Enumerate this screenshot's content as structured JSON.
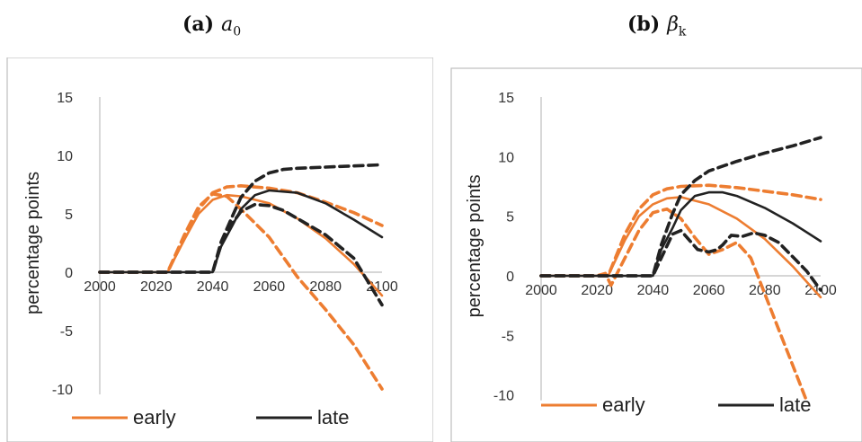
{
  "panels": [
    {
      "label": "(a)",
      "symbol": "a",
      "subscript": "0",
      "chart_data": {
        "type": "line",
        "title": "",
        "xlabel": "",
        "ylabel": "percentage points",
        "xlim": [
          2000,
          2100
        ],
        "ylim": [
          -10,
          15
        ],
        "x_ticks": [
          2000,
          2020,
          2040,
          2060,
          2080,
          2100
        ],
        "y_ticks": [
          -10,
          -5,
          0,
          5,
          10,
          15
        ],
        "legend_position": "bottom",
        "legend": [
          "early",
          "late"
        ],
        "colors": {
          "early": "#ED7D31",
          "late": "#222222"
        },
        "series": [
          {
            "legend_group": "early",
            "style": "solid",
            "x": [
              2000,
              2020,
              2024,
              2030,
              2035,
              2040,
              2045,
              2050,
              2060,
              2070,
              2080,
              2090,
              2100
            ],
            "y": [
              0,
              0,
              0,
              2.8,
              5.0,
              6.2,
              6.6,
              6.5,
              5.9,
              4.6,
              2.9,
              0.7,
              -2.0
            ]
          },
          {
            "legend_group": "early",
            "style": "dashed",
            "x": [
              2000,
              2020,
              2024,
              2030,
              2035,
              2040,
              2045,
              2050,
              2060,
              2070,
              2080,
              2090,
              2100
            ],
            "y": [
              0,
              0,
              0,
              3.0,
              5.4,
              6.8,
              7.3,
              7.4,
              7.2,
              6.8,
              6.0,
              5.1,
              4.0
            ]
          },
          {
            "legend_group": "early",
            "style": "dashed",
            "x": [
              2000,
              2020,
              2024,
              2030,
              2035,
              2040,
              2045,
              2050,
              2060,
              2070,
              2080,
              2090,
              2100
            ],
            "y": [
              0,
              0,
              0,
              3.2,
              5.6,
              6.7,
              6.5,
              5.4,
              3.0,
              -0.4,
              -3.2,
              -6.2,
              -10.0
            ]
          },
          {
            "legend_group": "late",
            "style": "solid",
            "x": [
              2000,
              2040,
              2043,
              2047,
              2050,
              2055,
              2060,
              2070,
              2080,
              2090,
              2100
            ],
            "y": [
              0,
              0,
              2.2,
              4.0,
              5.4,
              6.6,
              7.0,
              6.8,
              5.9,
              4.5,
              3.0
            ]
          },
          {
            "legend_group": "late",
            "style": "dashed",
            "x": [
              2000,
              2040,
              2043,
              2047,
              2050,
              2055,
              2060,
              2065,
              2070,
              2080,
              2090,
              2100
            ],
            "y": [
              0,
              0,
              2.6,
              4.8,
              6.4,
              7.8,
              8.5,
              8.8,
              8.9,
              9.0,
              9.1,
              9.2
            ]
          },
          {
            "legend_group": "late",
            "style": "dashed",
            "x": [
              2000,
              2040,
              2043,
              2047,
              2050,
              2055,
              2060,
              2065,
              2070,
              2080,
              2090,
              2100
            ],
            "y": [
              0,
              0,
              2.4,
              4.2,
              5.2,
              5.8,
              5.7,
              5.3,
              4.6,
              3.2,
              1.2,
              -2.8
            ]
          }
        ]
      }
    },
    {
      "label": "(b)",
      "symbol": "β",
      "subscript": "k",
      "chart_data": {
        "type": "line",
        "title": "",
        "xlabel": "",
        "ylabel": "percentage points",
        "xlim": [
          2000,
          2100
        ],
        "ylim": [
          -10,
          15
        ],
        "x_ticks": [
          2000,
          2020,
          2040,
          2060,
          2080,
          2100
        ],
        "y_ticks": [
          -10,
          -5,
          0,
          5,
          10,
          15
        ],
        "legend_position": "bottom",
        "legend": [
          "early",
          "late"
        ],
        "colors": {
          "early": "#ED7D31",
          "late": "#222222"
        },
        "series": [
          {
            "legend_group": "early",
            "style": "solid",
            "x": [
              2000,
              2020,
              2024,
              2030,
              2035,
              2040,
              2045,
              2050,
              2060,
              2070,
              2080,
              2090,
              2100
            ],
            "y": [
              0,
              0,
              0,
              3.0,
              5.0,
              6.0,
              6.5,
              6.6,
              6.0,
              4.8,
              3.1,
              0.8,
              -1.8
            ]
          },
          {
            "legend_group": "early",
            "style": "dashed",
            "x": [
              2000,
              2020,
              2024,
              2030,
              2035,
              2040,
              2045,
              2050,
              2060,
              2070,
              2080,
              2090,
              2100
            ],
            "y": [
              0,
              0,
              0,
              3.5,
              5.6,
              6.8,
              7.3,
              7.5,
              7.6,
              7.4,
              7.1,
              6.8,
              6.4
            ]
          },
          {
            "legend_group": "early",
            "style": "dashed",
            "x": [
              2000,
              2020,
              2023,
              2025,
              2030,
              2035,
              2040,
              2045,
              2050,
              2055,
              2060,
              2065,
              2070,
              2075,
              2080,
              2085,
              2090,
              2095
            ],
            "y": [
              0,
              0,
              0.2,
              -0.8,
              1.5,
              3.8,
              5.3,
              5.6,
              4.8,
              3.2,
              1.8,
              2.2,
              2.8,
              1.5,
              -1.5,
              -4.5,
              -7.5,
              -10.5
            ]
          },
          {
            "legend_group": "late",
            "style": "solid",
            "x": [
              2000,
              2040,
              2043,
              2047,
              2050,
              2055,
              2060,
              2065,
              2070,
              2080,
              2090,
              2100
            ],
            "y": [
              0,
              0,
              2.2,
              4.0,
              5.5,
              6.7,
              7.0,
              7.0,
              6.7,
              5.7,
              4.4,
              2.9
            ]
          },
          {
            "legend_group": "late",
            "style": "dashed",
            "x": [
              2000,
              2040,
              2043,
              2047,
              2050,
              2055,
              2060,
              2070,
              2080,
              2090,
              2100
            ],
            "y": [
              0,
              0,
              2.6,
              5.2,
              6.8,
              8.0,
              8.8,
              9.6,
              10.3,
              10.9,
              11.6
            ]
          },
          {
            "legend_group": "late",
            "style": "dashed",
            "x": [
              2000,
              2040,
              2043,
              2047,
              2050,
              2053,
              2056,
              2060,
              2063,
              2065,
              2068,
              2072,
              2076,
              2080,
              2085,
              2090,
              2095,
              2100
            ],
            "y": [
              0,
              0,
              1.5,
              3.5,
              3.8,
              3.0,
              2.2,
              2.0,
              2.2,
              2.6,
              3.4,
              3.3,
              3.6,
              3.4,
              2.8,
              1.6,
              0.4,
              -1.2
            ]
          }
        ]
      }
    }
  ]
}
